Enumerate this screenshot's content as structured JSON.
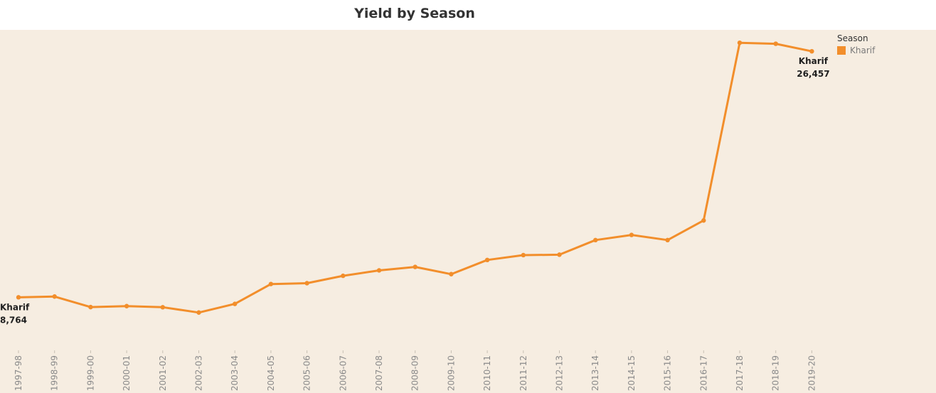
{
  "chart_data": {
    "type": "line",
    "title": "Yield by Season",
    "xlabel": "",
    "ylabel": "",
    "categories": [
      "1997-98",
      "1998-99",
      "1999-00",
      "2000-01",
      "2001-02",
      "2002-03",
      "2003-04",
      "2004-05",
      "2005-06",
      "2006-07",
      "2007-08",
      "2008-09",
      "2009-10",
      "2010-11",
      "2011-12",
      "2012-13",
      "2013-14",
      "2014-15",
      "2015-16",
      "2016-17",
      "2017-18",
      "2018-19",
      "2019-20"
    ],
    "series": [
      {
        "name": "Kharif",
        "color": "#f28e2b",
        "values": [
          8764,
          8820,
          8060,
          8130,
          8050,
          7670,
          8290,
          9720,
          9780,
          10310,
          10700,
          10950,
          10430,
          11450,
          11800,
          11830,
          12880,
          13250,
          12880,
          14290,
          27070,
          27000,
          26457
        ]
      }
    ],
    "ylim": [
      5000,
      28000
    ],
    "grid": false,
    "legend": {
      "title": "Season",
      "position": "top-right"
    },
    "annotations": [
      {
        "series": "Kharif",
        "index": 0,
        "label": "Kharif",
        "value_text": "8,764"
      },
      {
        "series": "Kharif",
        "index": 22,
        "label": "Kharif",
        "value_text": "26,457"
      }
    ],
    "background": "#f6ede1"
  }
}
